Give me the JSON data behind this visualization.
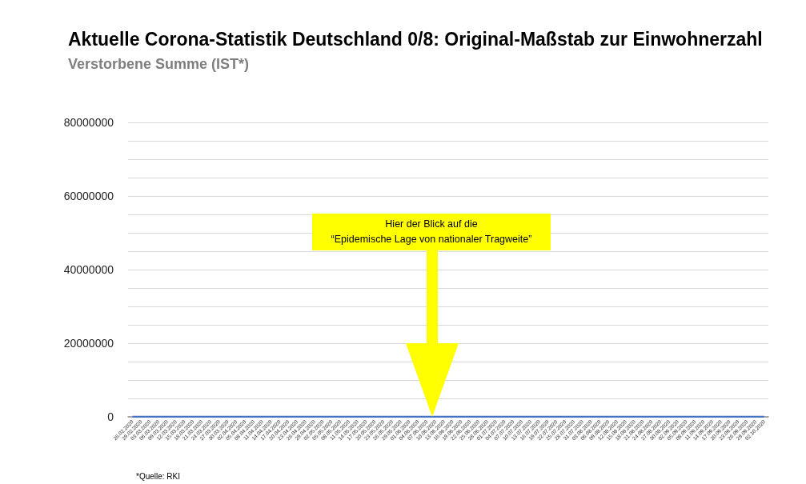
{
  "chart_data": {
    "type": "line",
    "title": "Aktuelle Corona-Statistik Deutschland 0/8: Original-Maßstab zur Einwohnerzahl",
    "subtitle": "Verstorbene Summe (IST*)",
    "categories": [
      "26.02.2020",
      "29.02.2020",
      "03.03.2020",
      "06.03.2020",
      "09.03.2020",
      "12.03.2020",
      "15.03.2020",
      "18.03.2020",
      "21.03.2020",
      "24.03.2020",
      "27.03.2020",
      "30.03.2020",
      "02.04.2020",
      "05.04.2020",
      "08.04.2020",
      "11.04.2020",
      "14.04.2020",
      "17.04.2020",
      "20.04.2020",
      "23.04.2020",
      "26.04.2020",
      "29.04.2020",
      "02.05.2020",
      "05.05.2020",
      "08.05.2020",
      "11.05.2020",
      "14.05.2020",
      "17.05.2020",
      "20.05.2020",
      "23.05.2020",
      "26.05.2020",
      "29.05.2020",
      "01.06.2020",
      "04.06.2020",
      "07.06.2020",
      "10.06.2020",
      "13.06.2020",
      "16.06.2020",
      "19.06.2020",
      "22.06.2020",
      "25.06.2020",
      "28.06.2020",
      "01.07.2020",
      "04.07.2020",
      "07.07.2020",
      "10.07.2020",
      "13.07.2020",
      "16.07.2020",
      "19.07.2020",
      "22.07.2020",
      "25.07.2020",
      "28.07.2020",
      "31.07.2020",
      "03.08.2020",
      "06.08.2020",
      "09.08.2020",
      "12.08.2020",
      "15.08.2020",
      "18.08.2020",
      "21.08.2020",
      "24.08.2020",
      "27.08.2020",
      "30.08.2020",
      "02.09.2020",
      "05.09.2020",
      "08.09.2020",
      "11.09.2020",
      "14.09.2020",
      "17.09.2020",
      "20.09.2020",
      "23.09.2020",
      "26.09.2020",
      "29.09.2020",
      "02.10.2020"
    ],
    "series": [
      {
        "color": "#4472c4",
        "values": [
          0,
          0,
          0,
          0,
          0,
          0,
          0,
          0,
          0,
          0,
          0,
          0,
          0,
          0,
          0,
          0,
          0,
          0,
          0,
          0,
          0,
          0,
          0,
          0,
          0,
          0,
          0,
          0,
          0,
          0,
          0,
          0,
          0,
          0,
          0,
          0,
          0,
          0,
          0,
          0,
          0,
          0,
          0,
          0,
          0,
          0,
          0,
          0,
          0,
          0,
          0,
          0,
          0,
          0,
          0,
          0,
          0,
          0,
          0,
          0,
          0,
          0,
          0,
          0,
          0,
          0,
          0,
          0,
          0,
          0,
          0,
          0,
          0,
          0
        ]
      }
    ],
    "ylim": [
      0,
      80000000
    ],
    "yticks": [
      0,
      {
        "value": 5000000,
        "label": null
      },
      {
        "value": 10000000,
        "label": null
      },
      {
        "value": 15000000,
        "label": null
      },
      20000000,
      {
        "value": 25000000,
        "label": null
      },
      {
        "value": 30000000,
        "label": null
      },
      {
        "value": 35000000,
        "label": null
      },
      40000000,
      {
        "value": 45000000,
        "label": null
      },
      {
        "value": 50000000,
        "label": null
      },
      {
        "value": 55000000,
        "label": null
      },
      60000000,
      {
        "value": 65000000,
        "label": null
      },
      {
        "value": 70000000,
        "label": null
      },
      {
        "value": 75000000,
        "label": null
      },
      80000000
    ],
    "grid": "y",
    "marker": "none",
    "annotations": [
      "Hier der Blick auf die\n“Epidemische Lage von nationaler Tragweite”",
      "*Quelle: RKI"
    ]
  }
}
